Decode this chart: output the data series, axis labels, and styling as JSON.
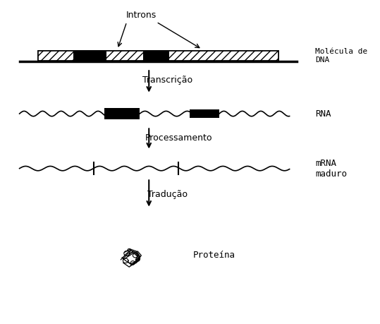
{
  "title": "",
  "bg_color": "#ffffff",
  "text_color": "#000000",
  "label_introns": "Introns",
  "label_transcricao": "Transcrição",
  "label_processamento": "Processamento",
  "label_traducao": "Tradução",
  "label_molecula": "Molécula de\nDNA",
  "label_rna": "RNA",
  "label_mrna": "mRNA\nmaduro",
  "label_proteina": "Proteína",
  "font_family": "monospace"
}
